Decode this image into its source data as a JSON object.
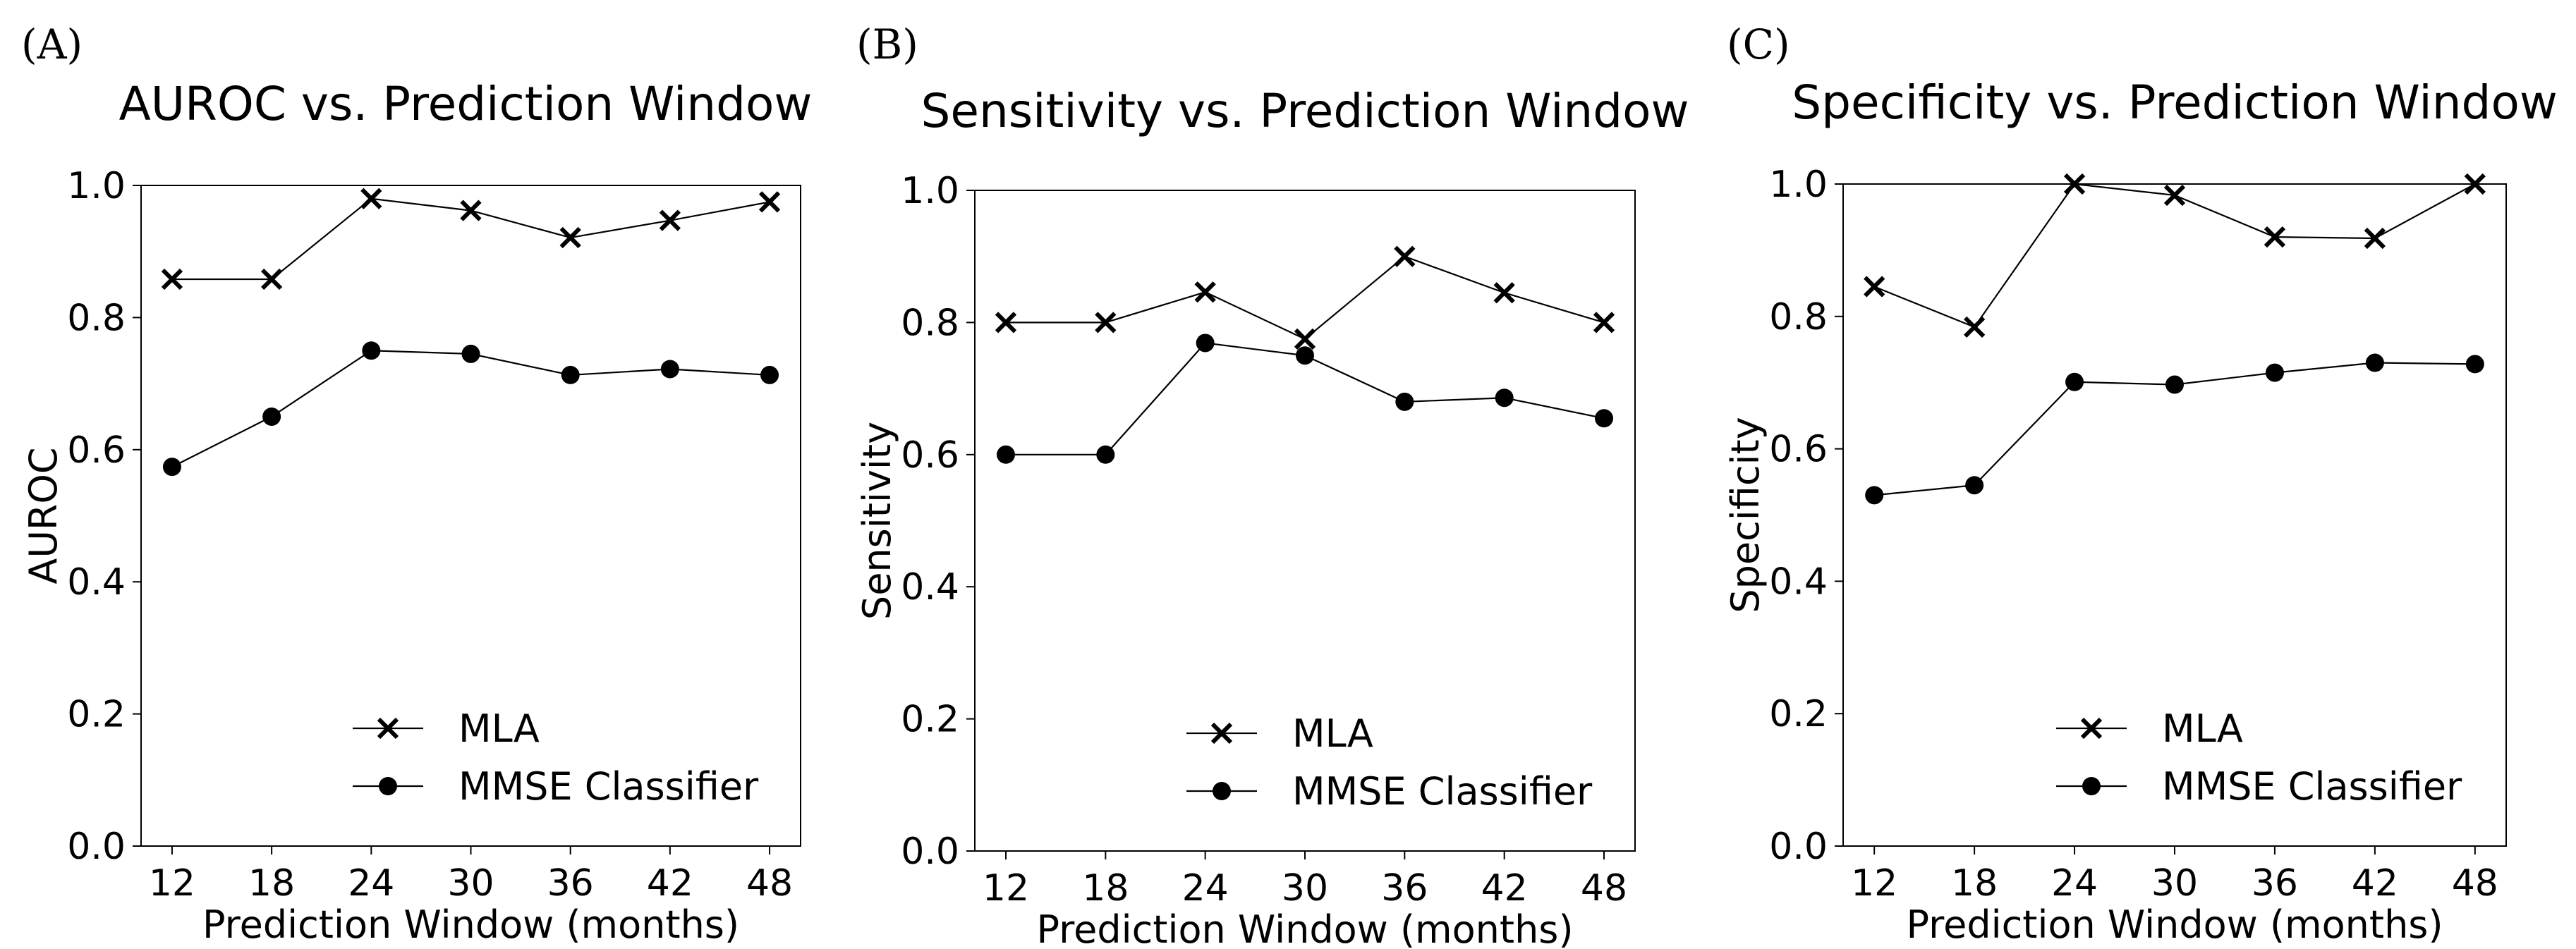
{
  "chart_data": [
    {
      "type": "line",
      "panel_label": "(A)",
      "title": "AUROC vs. Prediction Window",
      "xlabel": "Prediction Window (months)",
      "ylabel": "AUROC",
      "categories": [
        "12",
        "18",
        "24",
        "30",
        "36",
        "42",
        "48"
      ],
      "ylim": [
        0.0,
        1.0
      ],
      "yticks": [
        "0.0",
        "0.2",
        "0.4",
        "0.6",
        "0.8",
        "1.0"
      ],
      "legend_position": "lower-center",
      "grid": false,
      "series": [
        {
          "name": "MLA",
          "marker": "x",
          "values": [
            0.858,
            0.858,
            0.98,
            0.962,
            0.921,
            0.947,
            0.975
          ]
        },
        {
          "name": "MMSE Classifier",
          "marker": "o",
          "values": [
            0.574,
            0.65,
            0.75,
            0.745,
            0.713,
            0.722,
            0.713
          ]
        }
      ]
    },
    {
      "type": "line",
      "panel_label": "(B)",
      "title": "Sensitivity vs. Prediction Window",
      "xlabel": "Prediction Window (months)",
      "ylabel": "Sensitivity",
      "categories": [
        "12",
        "18",
        "24",
        "30",
        "36",
        "42",
        "48"
      ],
      "ylim": [
        0.0,
        1.0
      ],
      "yticks": [
        "0.0",
        "0.2",
        "0.4",
        "0.6",
        "0.8",
        "1.0"
      ],
      "legend_position": "lower-center",
      "grid": false,
      "series": [
        {
          "name": "MLA",
          "marker": "x",
          "values": [
            0.8,
            0.8,
            0.846,
            0.775,
            0.9,
            0.845,
            0.8
          ]
        },
        {
          "name": "MMSE Classifier",
          "marker": "o",
          "values": [
            0.6,
            0.6,
            0.769,
            0.75,
            0.68,
            0.686,
            0.655
          ]
        }
      ]
    },
    {
      "type": "line",
      "panel_label": "(C)",
      "title": "Specificity vs. Prediction Window",
      "xlabel": "Prediction Window (months)",
      "ylabel": "Specificity",
      "categories": [
        "12",
        "18",
        "24",
        "30",
        "36",
        "42",
        "48"
      ],
      "ylim": [
        0.0,
        1.0
      ],
      "yticks": [
        "0.0",
        "0.2",
        "0.4",
        "0.6",
        "0.8",
        "1.0"
      ],
      "legend_position": "lower-center",
      "grid": false,
      "series": [
        {
          "name": "MLA",
          "marker": "x",
          "values": [
            0.845,
            0.784,
            1.0,
            0.983,
            0.92,
            0.918,
            1.0
          ]
        },
        {
          "name": "MMSE Classifier",
          "marker": "o",
          "values": [
            0.53,
            0.545,
            0.701,
            0.697,
            0.715,
            0.73,
            0.728
          ]
        }
      ]
    }
  ]
}
